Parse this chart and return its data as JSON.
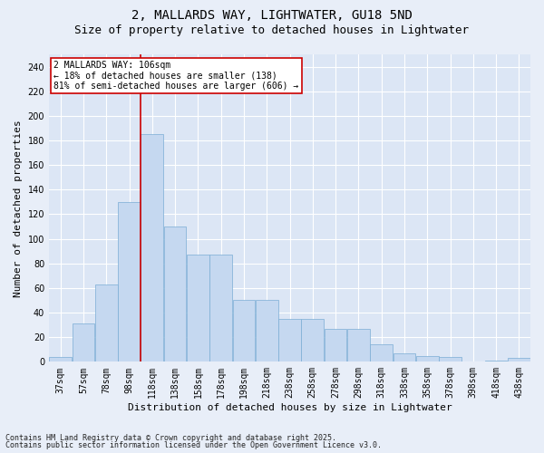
{
  "title1": "2, MALLARDS WAY, LIGHTWATER, GU18 5ND",
  "title2": "Size of property relative to detached houses in Lightwater",
  "xlabel": "Distribution of detached houses by size in Lightwater",
  "ylabel": "Number of detached properties",
  "footnote1": "Contains HM Land Registry data © Crown copyright and database right 2025.",
  "footnote2": "Contains public sector information licensed under the Open Government Licence v3.0.",
  "categories": [
    "37sqm",
    "57sqm",
    "78sqm",
    "98sqm",
    "118sqm",
    "138sqm",
    "158sqm",
    "178sqm",
    "198sqm",
    "218sqm",
    "238sqm",
    "258sqm",
    "278sqm",
    "298sqm",
    "318sqm",
    "338sqm",
    "358sqm",
    "378sqm",
    "398sqm",
    "418sqm",
    "438sqm"
  ],
  "values": [
    4,
    31,
    63,
    130,
    185,
    110,
    87,
    87,
    50,
    50,
    35,
    35,
    27,
    27,
    14,
    7,
    5,
    4,
    0,
    1,
    3
  ],
  "bar_color": "#c5d8f0",
  "bar_edge_color": "#7aadd4",
  "vline_x": 3.5,
  "vline_color": "#cc0000",
  "annotation_text": "2 MALLARDS WAY: 106sqm\n← 18% of detached houses are smaller (138)\n81% of semi-detached houses are larger (606) →",
  "annotation_box_facecolor": "#ffffff",
  "annotation_box_edgecolor": "#cc0000",
  "ylim": [
    0,
    250
  ],
  "yticks": [
    0,
    20,
    40,
    60,
    80,
    100,
    120,
    140,
    160,
    180,
    200,
    220,
    240
  ],
  "plot_bg_color": "#dce6f5",
  "fig_bg_color": "#e8eef8",
  "grid_color": "#ffffff",
  "title_fontsize": 10,
  "subtitle_fontsize": 9,
  "axis_label_fontsize": 8,
  "tick_fontsize": 7,
  "footnote_fontsize": 6
}
